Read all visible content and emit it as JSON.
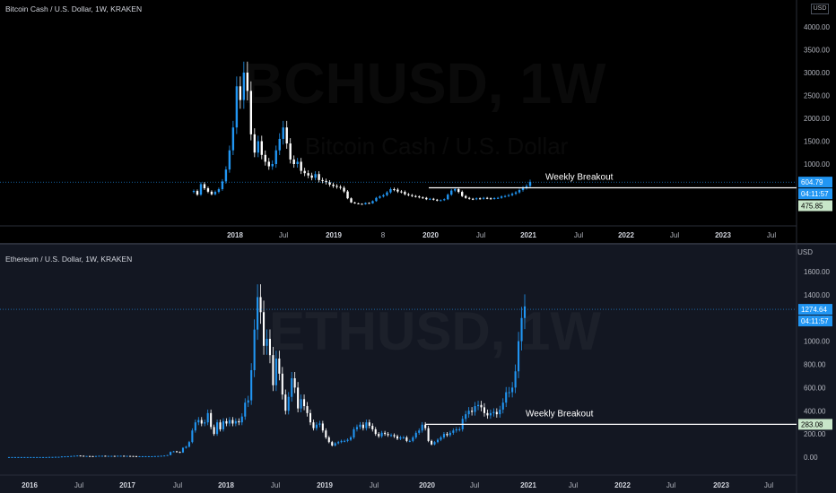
{
  "colors": {
    "up": "#2196f3",
    "down": "#ffffff",
    "blue_tag": "#2196f3",
    "green_tag": "#c8e6c9",
    "annotation_line": "#ffffff"
  },
  "chart_data": [
    {
      "type": "candlestick",
      "title": "Bitcoin Cash / U.S. Dollar, 1W, KRAKEN",
      "watermark": "BCHUSD, 1W",
      "watermark_sub": "Bitcoin Cash / U.S. Dollar",
      "currency": "USD",
      "ylim": [
        0,
        4500
      ],
      "yticks": [
        "4000.00",
        "3500.00",
        "3000.00",
        "2500.00",
        "2000.00",
        "1500.00",
        "1000.00"
      ],
      "yticks_values": [
        4000,
        3500,
        3000,
        2500,
        2000,
        1500,
        1000
      ],
      "xticks": [
        "2018",
        "Jul",
        "2019",
        "8",
        "2020",
        "Jul",
        "2021",
        "Jul",
        "2022",
        "Jul",
        "2023",
        "Jul"
      ],
      "xticks_bold": [
        "2018",
        "2019",
        "2020",
        "2021",
        "2022",
        "2023"
      ],
      "price_labels": {
        "last": "604.79",
        "countdown": "04:11:57",
        "level": "475.85"
      },
      "annotation": {
        "text": "Weekly Breakout",
        "level": 480
      },
      "x_date_start": "2017-08-01",
      "x_date_end": "2021-01-08",
      "series_weekly_close": [
        410,
        330,
        560,
        470,
        395,
        340,
        390,
        450,
        620,
        880,
        1300,
        1800,
        2700,
        2400,
        3000,
        2600,
        1650,
        1250,
        1500,
        1200,
        1050,
        950,
        1000,
        1300,
        1550,
        1800,
        1450,
        1100,
        1000,
        1050,
        850,
        800,
        750,
        700,
        780,
        650,
        630,
        600,
        550,
        520,
        500,
        480,
        400,
        250,
        160,
        140,
        130,
        120,
        150,
        140,
        190,
        260,
        290,
        320,
        380,
        450,
        440,
        400,
        390,
        340,
        320,
        300,
        290,
        270,
        260,
        230,
        240,
        220,
        200,
        210,
        230,
        330,
        420,
        450,
        390,
        300,
        260,
        240,
        230,
        250,
        240,
        260,
        250,
        240,
        255,
        260,
        290,
        300,
        320,
        350,
        380,
        430,
        480,
        520,
        610
      ]
    },
    {
      "type": "candlestick",
      "title": "Ethereum / U.S. Dollar, 1W, KRAKEN",
      "watermark": "ETHUSD, 1W",
      "currency": "USD",
      "ylim": [
        -80,
        1750
      ],
      "yticks": [
        "1600.00",
        "1400.00",
        "1200.00",
        "1000.00",
        "800.00",
        "600.00",
        "400.00",
        "200.00",
        "0.00"
      ],
      "yticks_values": [
        1600,
        1400,
        1200,
        1000,
        800,
        600,
        400,
        200,
        0
      ],
      "xticks": [
        "2016",
        "Jul",
        "2017",
        "Jul",
        "2018",
        "Jul",
        "2019",
        "Jul",
        "2020",
        "Jul",
        "2021",
        "Jul",
        "2022",
        "Jul",
        "2023",
        "Jul"
      ],
      "xticks_bold": [
        "2016",
        "2017",
        "2018",
        "2019",
        "2020",
        "2021",
        "2022",
        "2023"
      ],
      "price_labels": {
        "last": "1274.64",
        "countdown": "04:11:57",
        "level": "283.08"
      },
      "annotation": {
        "text": "Weekly Breakout",
        "level": 283
      },
      "x_date_start": "2015-09-01",
      "x_date_end": "2021-01-08",
      "series_weekly_close": [
        1,
        1,
        1,
        1,
        1,
        1,
        1,
        1,
        1,
        1,
        1,
        1,
        1,
        2,
        2,
        3,
        3,
        6,
        7,
        8,
        10,
        12,
        14,
        12,
        10,
        10,
        9,
        8,
        10,
        12,
        12,
        11,
        11,
        11,
        10,
        12,
        12,
        11,
        11,
        10,
        9,
        8,
        8,
        8,
        8,
        8,
        8,
        9,
        10,
        12,
        14,
        18,
        45,
        50,
        45,
        40,
        80,
        90,
        130,
        230,
        300,
        320,
        290,
        300,
        380,
        260,
        200,
        300,
        240,
        310,
        290,
        320,
        290,
        310,
        300,
        350,
        470,
        490,
        750,
        1100,
        1380,
        1250,
        960,
        1020,
        880,
        620,
        850,
        720,
        540,
        400,
        520,
        680,
        600,
        420,
        500,
        440,
        380,
        300,
        250,
        280,
        290,
        230,
        170,
        130,
        100,
        120,
        130,
        140,
        140,
        150,
        170,
        240,
        260,
        280,
        250,
        300,
        270,
        240,
        200,
        180,
        210,
        200,
        190,
        190,
        180,
        160,
        170,
        170,
        140,
        140,
        170,
        210,
        230,
        280,
        250,
        140,
        110,
        130,
        150,
        170,
        200,
        190,
        210,
        230,
        240,
        240,
        330,
        370,
        400,
        390,
        440,
        450,
        430,
        380,
        360,
        380,
        390,
        370,
        410,
        470,
        560,
        560,
        600,
        740,
        1000,
        1200,
        1300
      ]
    }
  ]
}
